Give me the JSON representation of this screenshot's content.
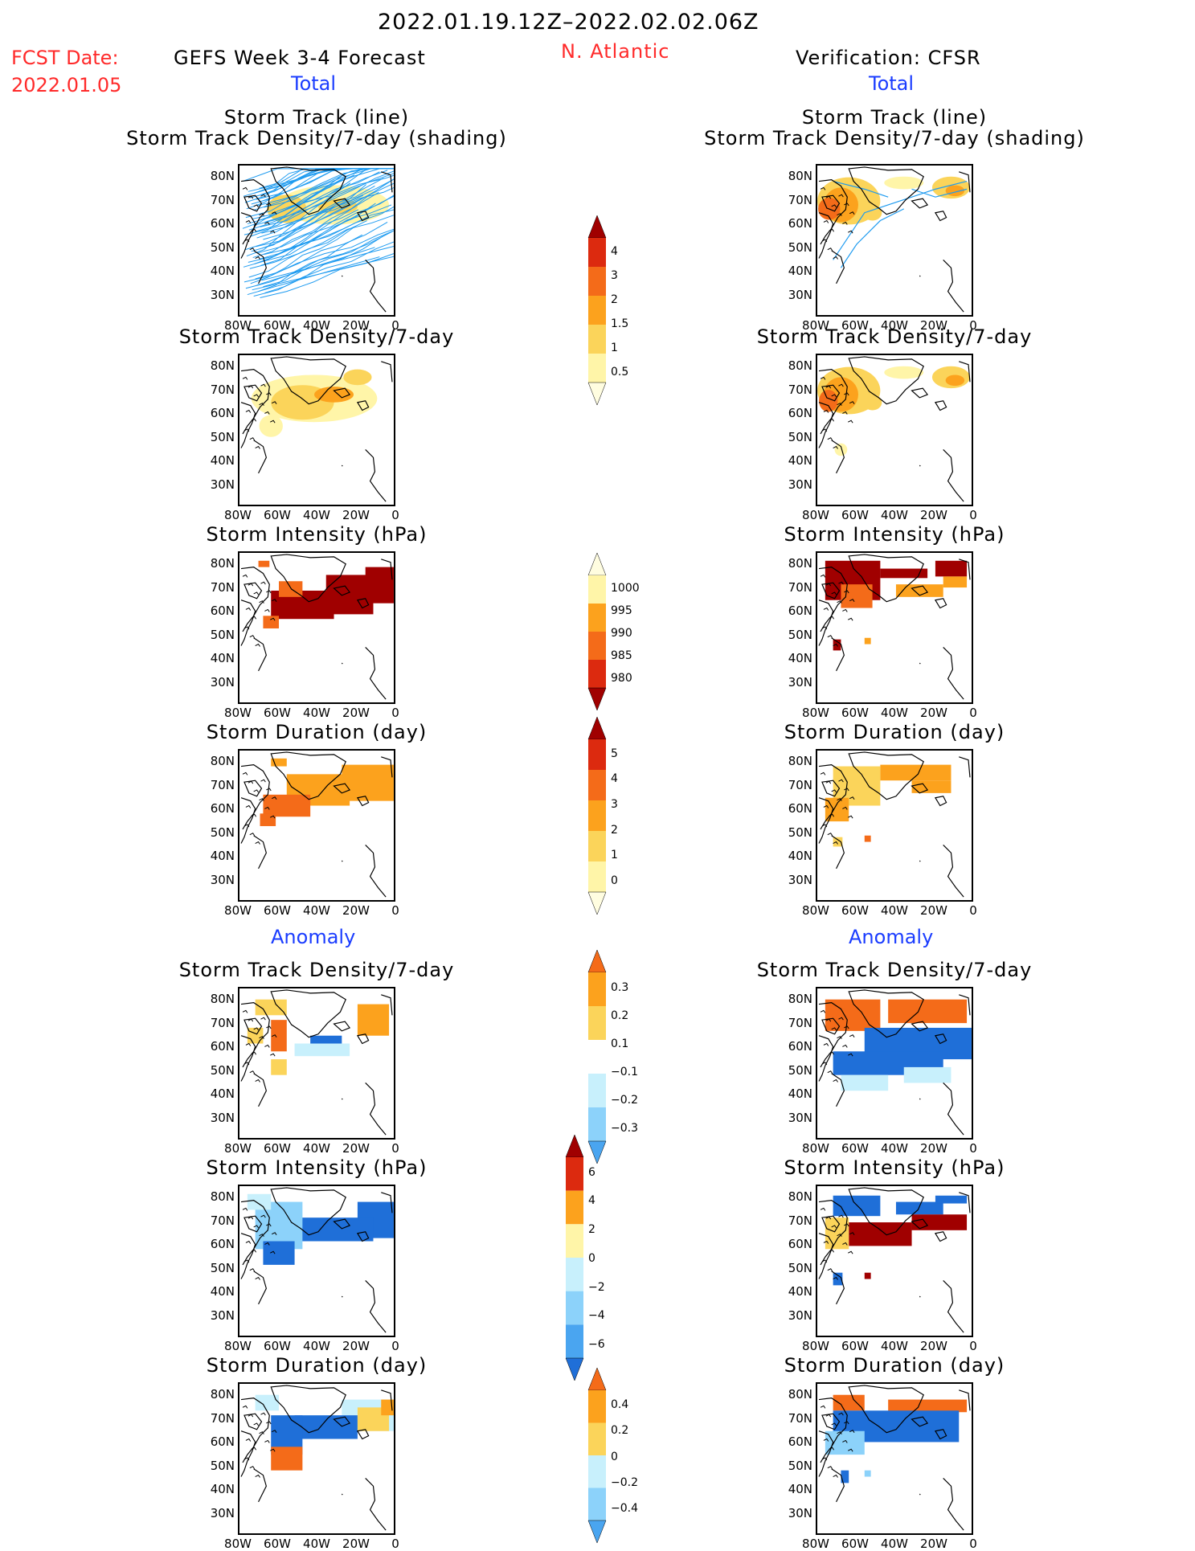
{
  "header": {
    "date_range": "2022.01.19.12Z–2022.02.02.06Z",
    "fcst_label": "FCST Date:",
    "fcst_date": "2022.01.05",
    "left_title": "GEFS Week 3-4 Forecast",
    "region": "N. Atlantic",
    "right_title": "Verification: CFSR"
  },
  "sections": {
    "total": "Total",
    "anomaly": "Anomaly"
  },
  "panel_titles": {
    "storm_track_line": "Storm Track (line)",
    "storm_track_density_shading": "Storm Track Density/7-day (shading)",
    "storm_track_density": "Storm Track Density/7-day",
    "storm_intensity": "Storm Intensity (hPa)",
    "storm_duration": "Storm Duration (day)"
  },
  "axes": {
    "lat_labels": [
      "80N",
      "70N",
      "60N",
      "50N",
      "40N",
      "30N"
    ],
    "lon_labels": [
      "80W",
      "60W",
      "40W",
      "20W",
      "0"
    ]
  },
  "colorbars": {
    "density_total": [
      "4",
      "3",
      "2",
      "1.5",
      "1",
      "0.5"
    ],
    "intensity_total": [
      "1000",
      "995",
      "990",
      "985",
      "980"
    ],
    "duration_total": [
      "5",
      "4",
      "3",
      "2",
      "1",
      "0"
    ],
    "density_anom": [
      "0.3",
      "0.2",
      "0.1",
      "−0.1",
      "−0.2",
      "−0.3"
    ],
    "intensity_anom": [
      "6",
      "4",
      "2",
      "0",
      "−2",
      "−4",
      "−6"
    ],
    "duration_anom": [
      "0.4",
      "0.2",
      "0",
      "−0.2",
      "−0.4"
    ]
  },
  "colors": {
    "light_yellow": "#fff5a8",
    "yellow": "#fbd45a",
    "orange": "#fca21d",
    "dark_orange": "#f46b19",
    "red": "#dc2a0f",
    "dark_red": "#a00000",
    "light_blue": "#c8f0fc",
    "sky_blue": "#8cd2fa",
    "mid_blue": "#4aa5f0",
    "blue": "#1f6fd8",
    "track_blue": "#1e9bf0"
  }
}
